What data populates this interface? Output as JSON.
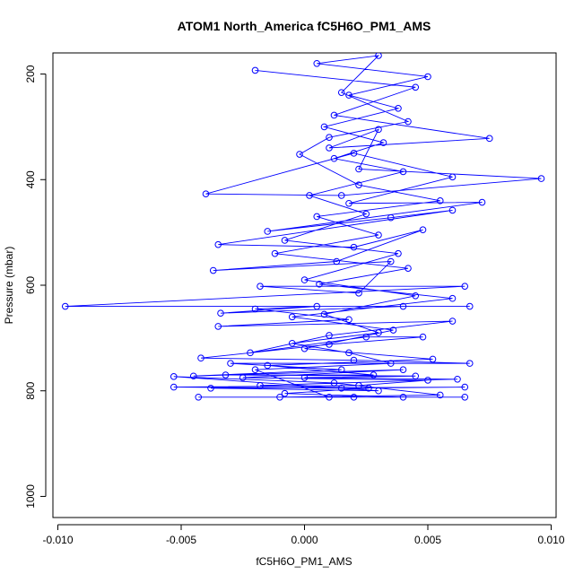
{
  "chart_data": {
    "type": "line",
    "title": "ATOM1 North_America fC5H6O_PM1_AMS",
    "xlabel": "fC5H6O_PM1_AMS",
    "ylabel": "Pressure (mbar)",
    "xlim": [
      -0.0102,
      0.0102
    ],
    "ylim": [
      1040,
      160
    ],
    "y_reversed": true,
    "x_ticks": [
      -0.01,
      -0.005,
      0.0,
      0.005,
      0.01
    ],
    "x_tick_labels": [
      "-0.010",
      "-0.005",
      "0.000",
      "0.005",
      "0.010"
    ],
    "y_ticks": [
      200,
      400,
      600,
      800,
      1000
    ],
    "y_tick_labels": [
      "200",
      "400",
      "600",
      "800",
      "1000"
    ],
    "grid": false,
    "series": [
      {
        "color": "#0000ff",
        "marker": "open-circle",
        "points": [
          [
            -0.002,
            193
          ],
          [
            0.0045,
            225
          ],
          [
            0.0012,
            278
          ],
          [
            0.0075,
            322
          ],
          [
            0.001,
            340
          ],
          [
            0.003,
            305
          ],
          [
            0.0022,
            380
          ],
          [
            0.0096,
            398
          ],
          [
            0.0015,
            430
          ],
          [
            -0.004,
            427
          ],
          [
            0.002,
            350
          ],
          [
            0.006,
            395
          ],
          [
            0.0018,
            445
          ],
          [
            0.0072,
            443
          ],
          [
            -0.0015,
            498
          ],
          [
            0.0035,
            472
          ],
          [
            0.006,
            458
          ],
          [
            -0.0035,
            523
          ],
          [
            0.002,
            528
          ],
          [
            0.0048,
            495
          ],
          [
            0.0013,
            555
          ],
          [
            -0.0037,
            572
          ],
          [
            0.0035,
            555
          ],
          [
            0.0022,
            615
          ],
          [
            -0.0018,
            602
          ],
          [
            0.0065,
            602
          ],
          [
            -0.0097,
            640
          ],
          [
            0.0067,
            640
          ],
          [
            0.004,
            640
          ],
          [
            -0.0034,
            653
          ],
          [
            0.0005,
            640
          ],
          [
            -0.002,
            645
          ],
          [
            0.0018,
            665
          ],
          [
            -0.0035,
            678
          ],
          [
            0.006,
            668
          ],
          [
            0.001,
            695
          ],
          [
            -0.0022,
            728
          ],
          [
            0.0025,
            698
          ],
          [
            0.0048,
            698
          ],
          [
            0.001,
            712
          ],
          [
            -0.0042,
            738
          ],
          [
            0.002,
            742
          ],
          [
            0.0067,
            748
          ],
          [
            -0.003,
            748
          ],
          [
            0.0015,
            760
          ],
          [
            -0.0045,
            772
          ],
          [
            0.004,
            760
          ],
          [
            -0.0025,
            775
          ],
          [
            0.005,
            780
          ],
          [
            0.0022,
            790
          ],
          [
            -0.0053,
            793
          ],
          [
            0.0015,
            795
          ],
          [
            0.0065,
            793
          ],
          [
            -0.0038,
            795
          ],
          [
            0.003,
            800
          ],
          [
            -0.0053,
            773
          ],
          [
            0.0012,
            785
          ],
          [
            0.0055,
            808
          ],
          [
            -0.001,
            812
          ],
          [
            0.002,
            812
          ],
          [
            -0.0043,
            812
          ],
          [
            0.0065,
            812
          ],
          [
            0.001,
            812
          ],
          [
            -0.002,
            760
          ],
          [
            0.0035,
            748
          ],
          [
            0.0018,
            728
          ],
          [
            -0.0005,
            710
          ],
          [
            0.003,
            690
          ],
          [
            0.0008,
            655
          ],
          [
            0.0045,
            620
          ],
          [
            0.0,
            590
          ],
          [
            0.0038,
            540
          ],
          [
            -0.0008,
            515
          ],
          [
            0.0025,
            465
          ],
          [
            0.0002,
            430
          ],
          [
            0.004,
            385
          ],
          [
            0.0012,
            360
          ],
          [
            0.0032,
            330
          ],
          [
            0.0008,
            300
          ],
          [
            0.0038,
            265
          ],
          [
            0.0018,
            240
          ],
          [
            0.005,
            205
          ],
          [
            0.0005,
            180
          ],
          [
            0.003,
            165
          ],
          [
            0.0015,
            235
          ],
          [
            0.0042,
            290
          ],
          [
            0.001,
            320
          ],
          [
            -0.0002,
            352
          ],
          [
            0.0022,
            410
          ],
          [
            0.0055,
            440
          ],
          [
            0.0005,
            470
          ],
          [
            0.003,
            505
          ],
          [
            -0.0012,
            540
          ],
          [
            0.0042,
            568
          ],
          [
            0.0006,
            598
          ],
          [
            0.006,
            625
          ],
          [
            -0.0005,
            660
          ],
          [
            0.0036,
            685
          ],
          [
            0.0,
            720
          ],
          [
            0.0052,
            740
          ],
          [
            -0.0015,
            752
          ],
          [
            0.0028,
            770
          ],
          [
            -0.0032,
            770
          ],
          [
            0.0045,
            772
          ],
          [
            0.0,
            775
          ],
          [
            0.0062,
            778
          ],
          [
            -0.0018,
            790
          ],
          [
            0.0026,
            795
          ],
          [
            -0.0008,
            805
          ],
          [
            0.004,
            812
          ]
        ]
      }
    ]
  }
}
